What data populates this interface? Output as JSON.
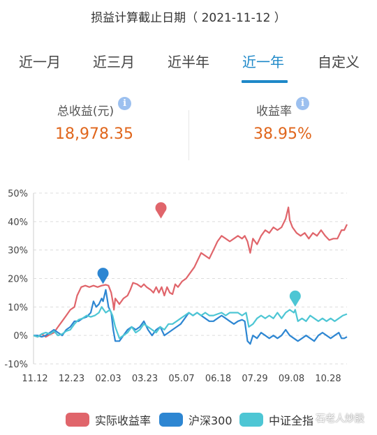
{
  "header": {
    "title": "损益计算截止日期（ 2021-11-12 ）"
  },
  "tabs": [
    "近一月",
    "近三月",
    "近半年",
    "近一年",
    "自定义"
  ],
  "active_tab": "近一年",
  "summary": {
    "total_label": "总收益(元)",
    "total_value": "18,978.35",
    "rate_label": "收益率",
    "rate_value": "38.95%"
  },
  "colors": {
    "accent": "#1e88c8",
    "value": "#e0661c",
    "series1": "#e0656b",
    "series2": "#2d86d2",
    "series3": "#4dc6d4"
  },
  "icons": [
    "info-icon",
    "info-icon",
    "map-pin-icon"
  ],
  "legend": [
    "实际收益率",
    "沪深300",
    "中证全指"
  ],
  "watermark": "石老人炒股",
  "chart_data": {
    "type": "line",
    "x_ticks": [
      "11.12",
      "12.23",
      "02.03",
      "03.23",
      "05.07",
      "06.18",
      "07.29",
      "09.08",
      "10.28"
    ],
    "y_ticks": [
      "50%",
      "40%",
      "30%",
      "20%",
      "10%",
      "0%",
      "-10%"
    ],
    "ylim": [
      -10,
      50
    ],
    "grid": "horizontal dashed",
    "legend_position": "bottom",
    "series": [
      {
        "name": "实际收益率",
        "color": "#e0656b",
        "markers": [
          [
            9.35,
            44.5
          ]
        ],
        "points": [
          [
            0,
            0
          ],
          [
            0.3,
            -0.5
          ],
          [
            0.6,
            0.5
          ],
          [
            0.9,
            -0.5
          ],
          [
            1.2,
            0.3
          ],
          [
            1.5,
            1
          ],
          [
            1.8,
            3
          ],
          [
            2.1,
            5
          ],
          [
            2.4,
            7
          ],
          [
            2.7,
            9
          ],
          [
            3.0,
            10
          ],
          [
            3.2,
            14
          ],
          [
            3.5,
            17
          ],
          [
            3.8,
            17.5
          ],
          [
            4.1,
            17
          ],
          [
            4.4,
            17.5
          ],
          [
            4.7,
            17
          ],
          [
            5.0,
            17.5
          ],
          [
            5.3,
            17.8
          ],
          [
            5.5,
            17.5
          ],
          [
            5.7,
            15
          ],
          [
            5.85,
            11
          ],
          [
            5.9,
            9
          ],
          [
            6.0,
            13
          ],
          [
            6.3,
            11
          ],
          [
            6.6,
            13
          ],
          [
            6.9,
            14
          ],
          [
            7.1,
            16
          ],
          [
            7.3,
            18.5
          ],
          [
            7.6,
            18
          ],
          [
            7.9,
            17
          ],
          [
            8.1,
            18
          ],
          [
            8.3,
            17
          ],
          [
            8.6,
            16
          ],
          [
            8.8,
            15
          ],
          [
            9.0,
            17
          ],
          [
            9.2,
            15
          ],
          [
            9.4,
            17
          ],
          [
            9.6,
            14
          ],
          [
            9.8,
            17
          ],
          [
            10.0,
            15
          ],
          [
            10.2,
            14.5
          ],
          [
            10.4,
            18
          ],
          [
            10.6,
            17
          ],
          [
            10.9,
            19
          ],
          [
            11.2,
            20
          ],
          [
            11.5,
            22
          ],
          [
            11.8,
            24
          ],
          [
            12.0,
            26
          ],
          [
            12.3,
            29
          ],
          [
            12.6,
            28
          ],
          [
            12.9,
            27
          ],
          [
            13.2,
            30
          ],
          [
            13.5,
            33
          ],
          [
            13.8,
            35
          ],
          [
            14.1,
            34
          ],
          [
            14.4,
            33
          ],
          [
            14.7,
            34
          ],
          [
            15.0,
            35
          ],
          [
            15.3,
            34
          ],
          [
            15.5,
            35
          ],
          [
            15.7,
            33
          ],
          [
            15.9,
            29
          ],
          [
            16.1,
            34
          ],
          [
            16.4,
            32
          ],
          [
            16.7,
            35
          ],
          [
            17.0,
            37
          ],
          [
            17.3,
            36
          ],
          [
            17.6,
            38
          ],
          [
            17.9,
            37
          ],
          [
            18.2,
            38
          ],
          [
            18.5,
            41
          ],
          [
            18.7,
            45
          ],
          [
            18.8,
            40.5
          ],
          [
            19.0,
            38
          ],
          [
            19.3,
            36
          ],
          [
            19.6,
            35
          ],
          [
            19.9,
            36
          ],
          [
            20.2,
            34
          ],
          [
            20.5,
            36
          ],
          [
            20.8,
            35
          ],
          [
            21.1,
            37
          ],
          [
            21.4,
            35
          ],
          [
            21.7,
            33.5
          ],
          [
            22.0,
            34
          ],
          [
            22.3,
            34
          ],
          [
            22.6,
            37
          ],
          [
            22.8,
            37
          ],
          [
            23.0,
            39
          ]
        ]
      },
      {
        "name": "沪深300",
        "color": "#2d86d2",
        "markers": [
          [
            5.1,
            21.5
          ]
        ],
        "points": [
          [
            0,
            0
          ],
          [
            0.3,
            0
          ],
          [
            0.6,
            -0.5
          ],
          [
            0.9,
            0
          ],
          [
            1.2,
            1
          ],
          [
            1.5,
            2
          ],
          [
            1.8,
            1
          ],
          [
            2.1,
            0
          ],
          [
            2.4,
            2
          ],
          [
            2.7,
            3
          ],
          [
            3.0,
            5
          ],
          [
            3.3,
            5
          ],
          [
            3.6,
            6
          ],
          [
            3.9,
            6.5
          ],
          [
            4.2,
            8
          ],
          [
            4.4,
            12
          ],
          [
            4.6,
            10
          ],
          [
            4.8,
            11
          ],
          [
            5.0,
            13
          ],
          [
            5.1,
            12
          ],
          [
            5.3,
            16
          ],
          [
            5.5,
            10
          ],
          [
            5.7,
            8
          ],
          [
            5.85,
            2
          ],
          [
            6.0,
            -2
          ],
          [
            6.3,
            -2
          ],
          [
            6.6,
            0
          ],
          [
            6.9,
            2
          ],
          [
            7.2,
            3
          ],
          [
            7.5,
            2
          ],
          [
            7.8,
            3
          ],
          [
            8.1,
            5
          ],
          [
            8.4,
            2
          ],
          [
            8.7,
            0
          ],
          [
            9.0,
            2
          ],
          [
            9.3,
            3
          ],
          [
            9.6,
            0
          ],
          [
            9.9,
            1
          ],
          [
            10.2,
            2
          ],
          [
            10.5,
            3
          ],
          [
            10.8,
            4
          ],
          [
            11.1,
            6
          ],
          [
            11.4,
            8
          ],
          [
            11.7,
            7
          ],
          [
            12.0,
            8
          ],
          [
            12.3,
            7
          ],
          [
            12.6,
            6
          ],
          [
            12.9,
            5
          ],
          [
            13.2,
            5
          ],
          [
            13.5,
            6
          ],
          [
            13.8,
            7
          ],
          [
            14.1,
            6
          ],
          [
            14.4,
            5
          ],
          [
            14.7,
            4
          ],
          [
            15.0,
            5
          ],
          [
            15.3,
            5.5
          ],
          [
            15.5,
            5
          ],
          [
            15.7,
            -2
          ],
          [
            15.9,
            -3
          ],
          [
            16.1,
            0
          ],
          [
            16.4,
            -1
          ],
          [
            16.7,
            1
          ],
          [
            17.0,
            0
          ],
          [
            17.3,
            -1
          ],
          [
            17.6,
            0
          ],
          [
            17.9,
            -1
          ],
          [
            18.2,
            0
          ],
          [
            18.5,
            2
          ],
          [
            18.8,
            0
          ],
          [
            19.1,
            -1
          ],
          [
            19.4,
            -2
          ],
          [
            19.7,
            -1
          ],
          [
            20.0,
            0
          ],
          [
            20.3,
            -1
          ],
          [
            20.6,
            -2
          ],
          [
            20.9,
            0
          ],
          [
            21.2,
            1
          ],
          [
            21.5,
            0
          ],
          [
            21.8,
            -1
          ],
          [
            22.1,
            0
          ],
          [
            22.4,
            1
          ],
          [
            22.6,
            -1
          ],
          [
            22.8,
            -1
          ],
          [
            23.0,
            -0.5
          ]
        ]
      },
      {
        "name": "中证全指",
        "color": "#4dc6d4",
        "markers": [
          [
            19.2,
            13.5
          ]
        ],
        "points": [
          [
            0,
            0
          ],
          [
            0.3,
            -0.5
          ],
          [
            0.6,
            0.5
          ],
          [
            0.9,
            1
          ],
          [
            1.2,
            0.5
          ],
          [
            1.5,
            1.5
          ],
          [
            1.8,
            0
          ],
          [
            2.1,
            0.5
          ],
          [
            2.4,
            1.5
          ],
          [
            2.7,
            2
          ],
          [
            3.0,
            4
          ],
          [
            3.3,
            5.5
          ],
          [
            3.6,
            6
          ],
          [
            3.9,
            7
          ],
          [
            4.2,
            6.5
          ],
          [
            4.5,
            7
          ],
          [
            4.8,
            8
          ],
          [
            5.0,
            10
          ],
          [
            5.3,
            8
          ],
          [
            5.6,
            9
          ],
          [
            5.8,
            7
          ],
          [
            6.0,
            3
          ],
          [
            6.3,
            -1
          ],
          [
            6.6,
            0
          ],
          [
            6.9,
            1
          ],
          [
            7.2,
            3
          ],
          [
            7.5,
            1
          ],
          [
            7.8,
            2
          ],
          [
            8.1,
            4
          ],
          [
            8.4,
            3
          ],
          [
            8.7,
            2
          ],
          [
            9.0,
            1
          ],
          [
            9.3,
            3
          ],
          [
            9.6,
            2
          ],
          [
            9.9,
            4
          ],
          [
            10.2,
            4
          ],
          [
            10.5,
            5
          ],
          [
            10.8,
            6
          ],
          [
            11.1,
            7
          ],
          [
            11.4,
            8
          ],
          [
            11.7,
            7
          ],
          [
            12.0,
            8
          ],
          [
            12.3,
            7
          ],
          [
            12.6,
            8
          ],
          [
            12.9,
            7
          ],
          [
            13.2,
            7
          ],
          [
            13.5,
            7.5
          ],
          [
            13.8,
            8
          ],
          [
            14.1,
            7
          ],
          [
            14.4,
            8
          ],
          [
            14.7,
            8
          ],
          [
            15.0,
            8
          ],
          [
            15.3,
            7
          ],
          [
            15.6,
            8
          ],
          [
            15.8,
            3
          ],
          [
            16.1,
            4
          ],
          [
            16.4,
            6
          ],
          [
            16.7,
            7
          ],
          [
            17.0,
            6
          ],
          [
            17.3,
            7
          ],
          [
            17.6,
            6
          ],
          [
            17.9,
            8
          ],
          [
            18.2,
            6
          ],
          [
            18.5,
            8
          ],
          [
            18.8,
            9
          ],
          [
            19.1,
            8
          ],
          [
            19.2,
            9
          ],
          [
            19.4,
            5
          ],
          [
            19.7,
            6
          ],
          [
            20.0,
            5
          ],
          [
            20.3,
            7
          ],
          [
            20.6,
            6
          ],
          [
            20.9,
            5
          ],
          [
            21.2,
            6
          ],
          [
            21.5,
            5
          ],
          [
            21.8,
            6
          ],
          [
            22.1,
            5
          ],
          [
            22.4,
            6
          ],
          [
            22.7,
            7
          ],
          [
            23.0,
            7.5
          ]
        ]
      }
    ]
  }
}
